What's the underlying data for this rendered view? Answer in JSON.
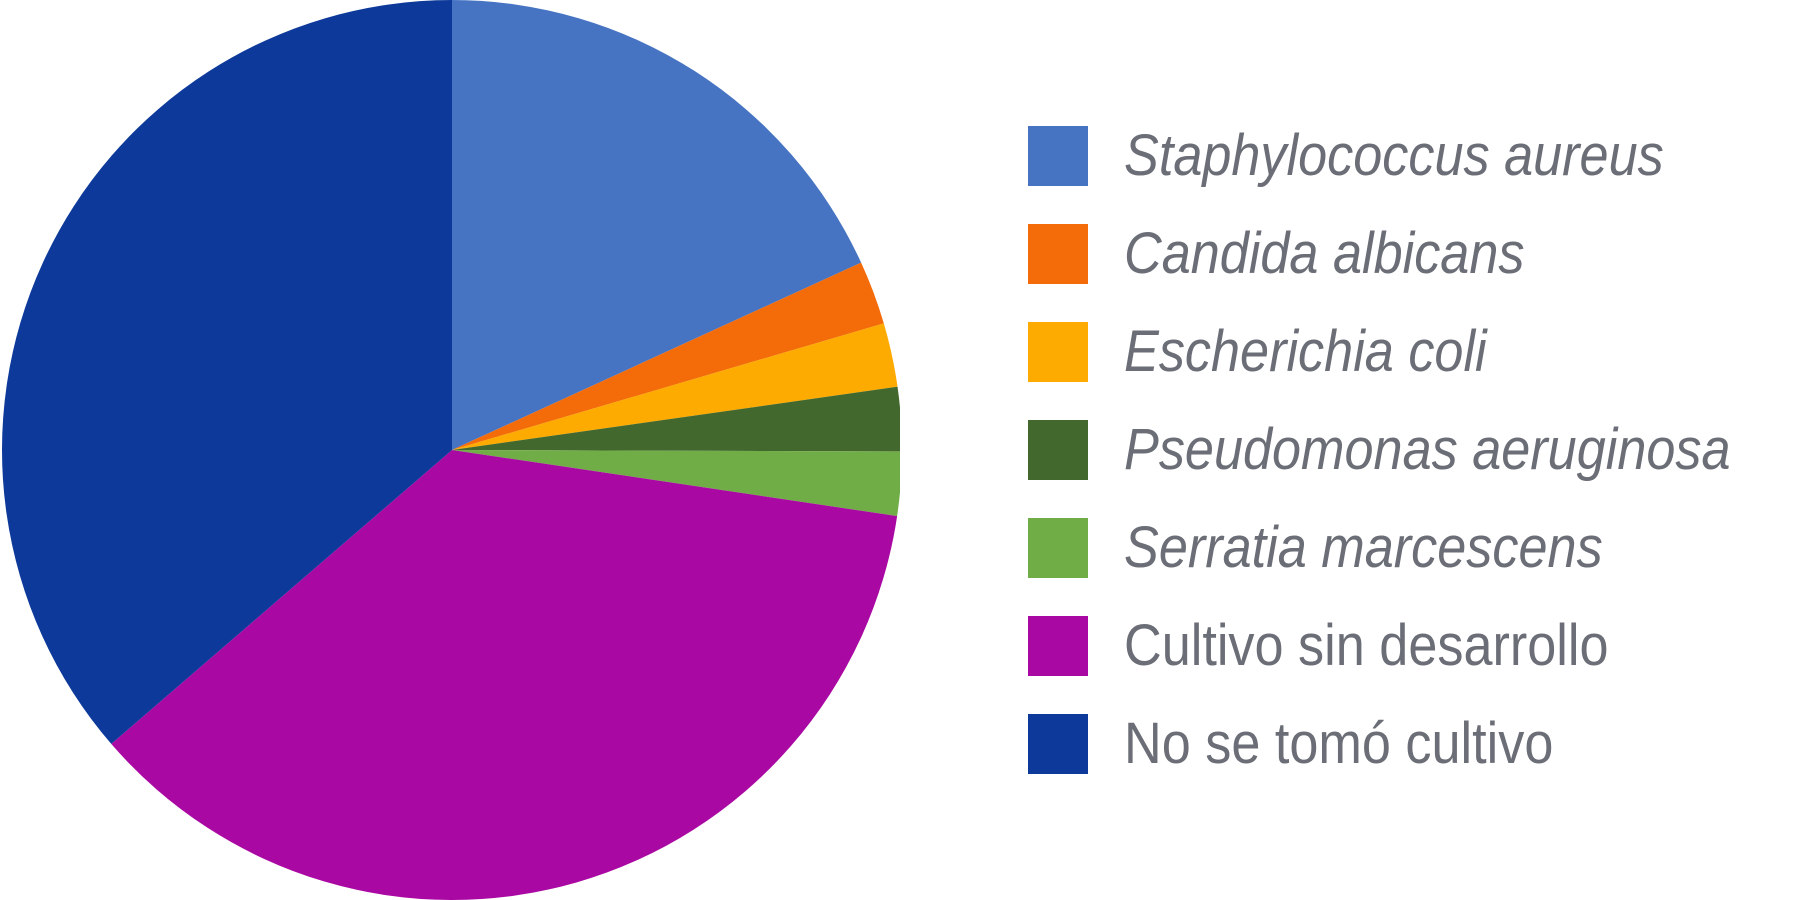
{
  "chart_data": {
    "type": "pie",
    "start_angle": "12 o'clock",
    "direction": "clockwise",
    "legend_position": "right",
    "slices": [
      {
        "label": "Staphylococcus aureus",
        "value": 18.2,
        "color": "#4674c3",
        "italic": true
      },
      {
        "label": "Candida albicans",
        "value": 2.3,
        "color": "#f46b0a",
        "italic": true
      },
      {
        "label": "Escherichia coli",
        "value": 2.3,
        "color": "#fdab00",
        "italic": true
      },
      {
        "label": "Pseudomonas aeruginosa",
        "value": 2.3,
        "color": "#43682d",
        "italic": true
      },
      {
        "label": "Serratia marcescens",
        "value": 2.3,
        "color": "#71ad47",
        "italic": true
      },
      {
        "label": "Cultivo sin desarrollo",
        "value": 36.4,
        "color": "#aa08a2",
        "italic": false
      },
      {
        "label": "No se tomó cultivo",
        "value": 36.4,
        "color": "#0d3a9a",
        "italic": false
      }
    ]
  }
}
